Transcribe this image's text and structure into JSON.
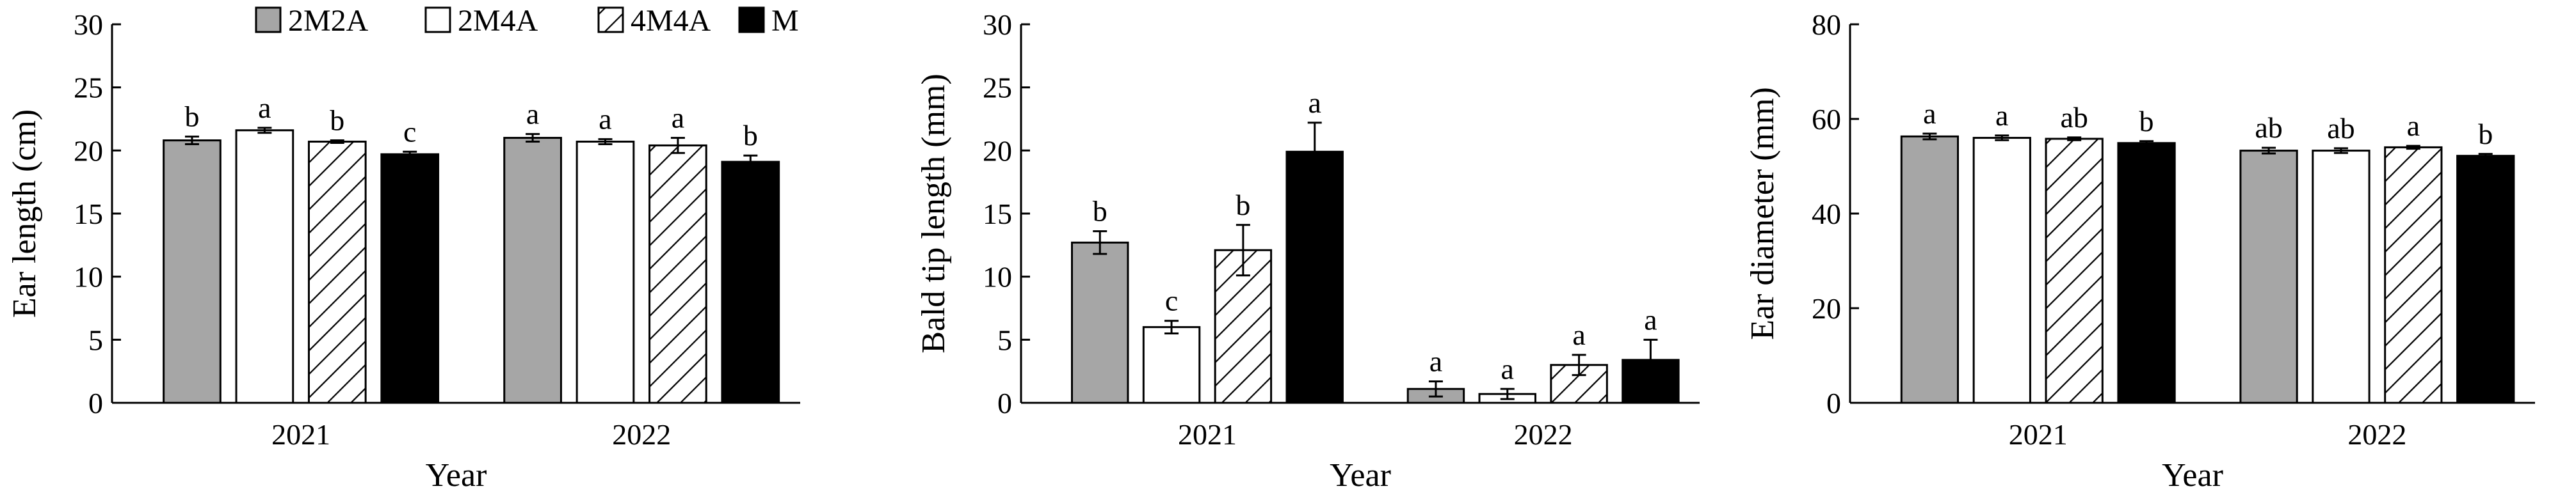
{
  "legend": [
    {
      "name": "2M2A",
      "fill": "gray"
    },
    {
      "name": "2M4A",
      "fill": "white"
    },
    {
      "name": "4M4A",
      "fill": "hatch"
    },
    {
      "name": "M",
      "fill": "black"
    }
  ],
  "colors": {
    "gray": "#a6a6a6",
    "black": "#000000",
    "white": "#ffffff"
  },
  "chart_data": [
    {
      "type": "bar",
      "categories": [
        "2021",
        "2022"
      ],
      "series": [
        {
          "name": "2M2A",
          "values": [
            20.8,
            21.0
          ],
          "errors": [
            0.3,
            0.3
          ],
          "letters": [
            "b",
            "a"
          ]
        },
        {
          "name": "2M4A",
          "values": [
            21.6,
            20.7
          ],
          "errors": [
            0.2,
            0.2
          ],
          "letters": [
            "a",
            "a"
          ]
        },
        {
          "name": "4M4A",
          "values": [
            20.7,
            20.4
          ],
          "errors": [
            0.1,
            0.6
          ],
          "letters": [
            "b",
            "a"
          ]
        },
        {
          "name": "M",
          "values": [
            19.7,
            19.1
          ],
          "errors": [
            0.2,
            0.5
          ],
          "letters": [
            "c",
            "b"
          ]
        }
      ],
      "ylabel": "Ear length (cm)",
      "xlabel": "Year",
      "ylim": [
        0,
        30
      ],
      "yticks": [
        0,
        5,
        10,
        15,
        20,
        25,
        30
      ],
      "legend_position": "top"
    },
    {
      "type": "bar",
      "categories": [
        "2021",
        "2022"
      ],
      "series": [
        {
          "name": "2M2A",
          "values": [
            12.7,
            1.1
          ],
          "errors": [
            0.9,
            0.6
          ],
          "letters": [
            "b",
            "a"
          ]
        },
        {
          "name": "2M4A",
          "values": [
            6.0,
            0.7
          ],
          "errors": [
            0.5,
            0.4
          ],
          "letters": [
            "c",
            "a"
          ]
        },
        {
          "name": "4M4A",
          "values": [
            12.1,
            3.0
          ],
          "errors": [
            2.0,
            0.8
          ],
          "letters": [
            "b",
            "a"
          ]
        },
        {
          "name": "M",
          "values": [
            19.9,
            3.4
          ],
          "errors": [
            2.3,
            1.6
          ],
          "letters": [
            "a",
            "a"
          ]
        }
      ],
      "ylabel": "Bald tip length (mm)",
      "xlabel": "Year",
      "ylim": [
        0,
        30
      ],
      "yticks": [
        0,
        5,
        10,
        15,
        20,
        25,
        30
      ]
    },
    {
      "type": "bar",
      "categories": [
        "2021",
        "2022"
      ],
      "series": [
        {
          "name": "2M2A",
          "values": [
            56.3,
            53.3
          ],
          "errors": [
            0.6,
            0.6
          ],
          "letters": [
            "a",
            "ab"
          ]
        },
        {
          "name": "2M4A",
          "values": [
            56.0,
            53.3
          ],
          "errors": [
            0.5,
            0.5
          ],
          "letters": [
            "a",
            "ab"
          ]
        },
        {
          "name": "4M4A",
          "values": [
            55.8,
            54.0
          ],
          "errors": [
            0.3,
            0.3
          ],
          "letters": [
            "ab",
            "a"
          ]
        },
        {
          "name": "M",
          "values": [
            54.9,
            52.2
          ],
          "errors": [
            0.4,
            0.4
          ],
          "letters": [
            "b",
            "b"
          ]
        }
      ],
      "ylabel": "Ear diameter (mm)",
      "xlabel": "Year",
      "ylim": [
        0,
        80
      ],
      "yticks": [
        0,
        20,
        40,
        60,
        80
      ]
    }
  ]
}
